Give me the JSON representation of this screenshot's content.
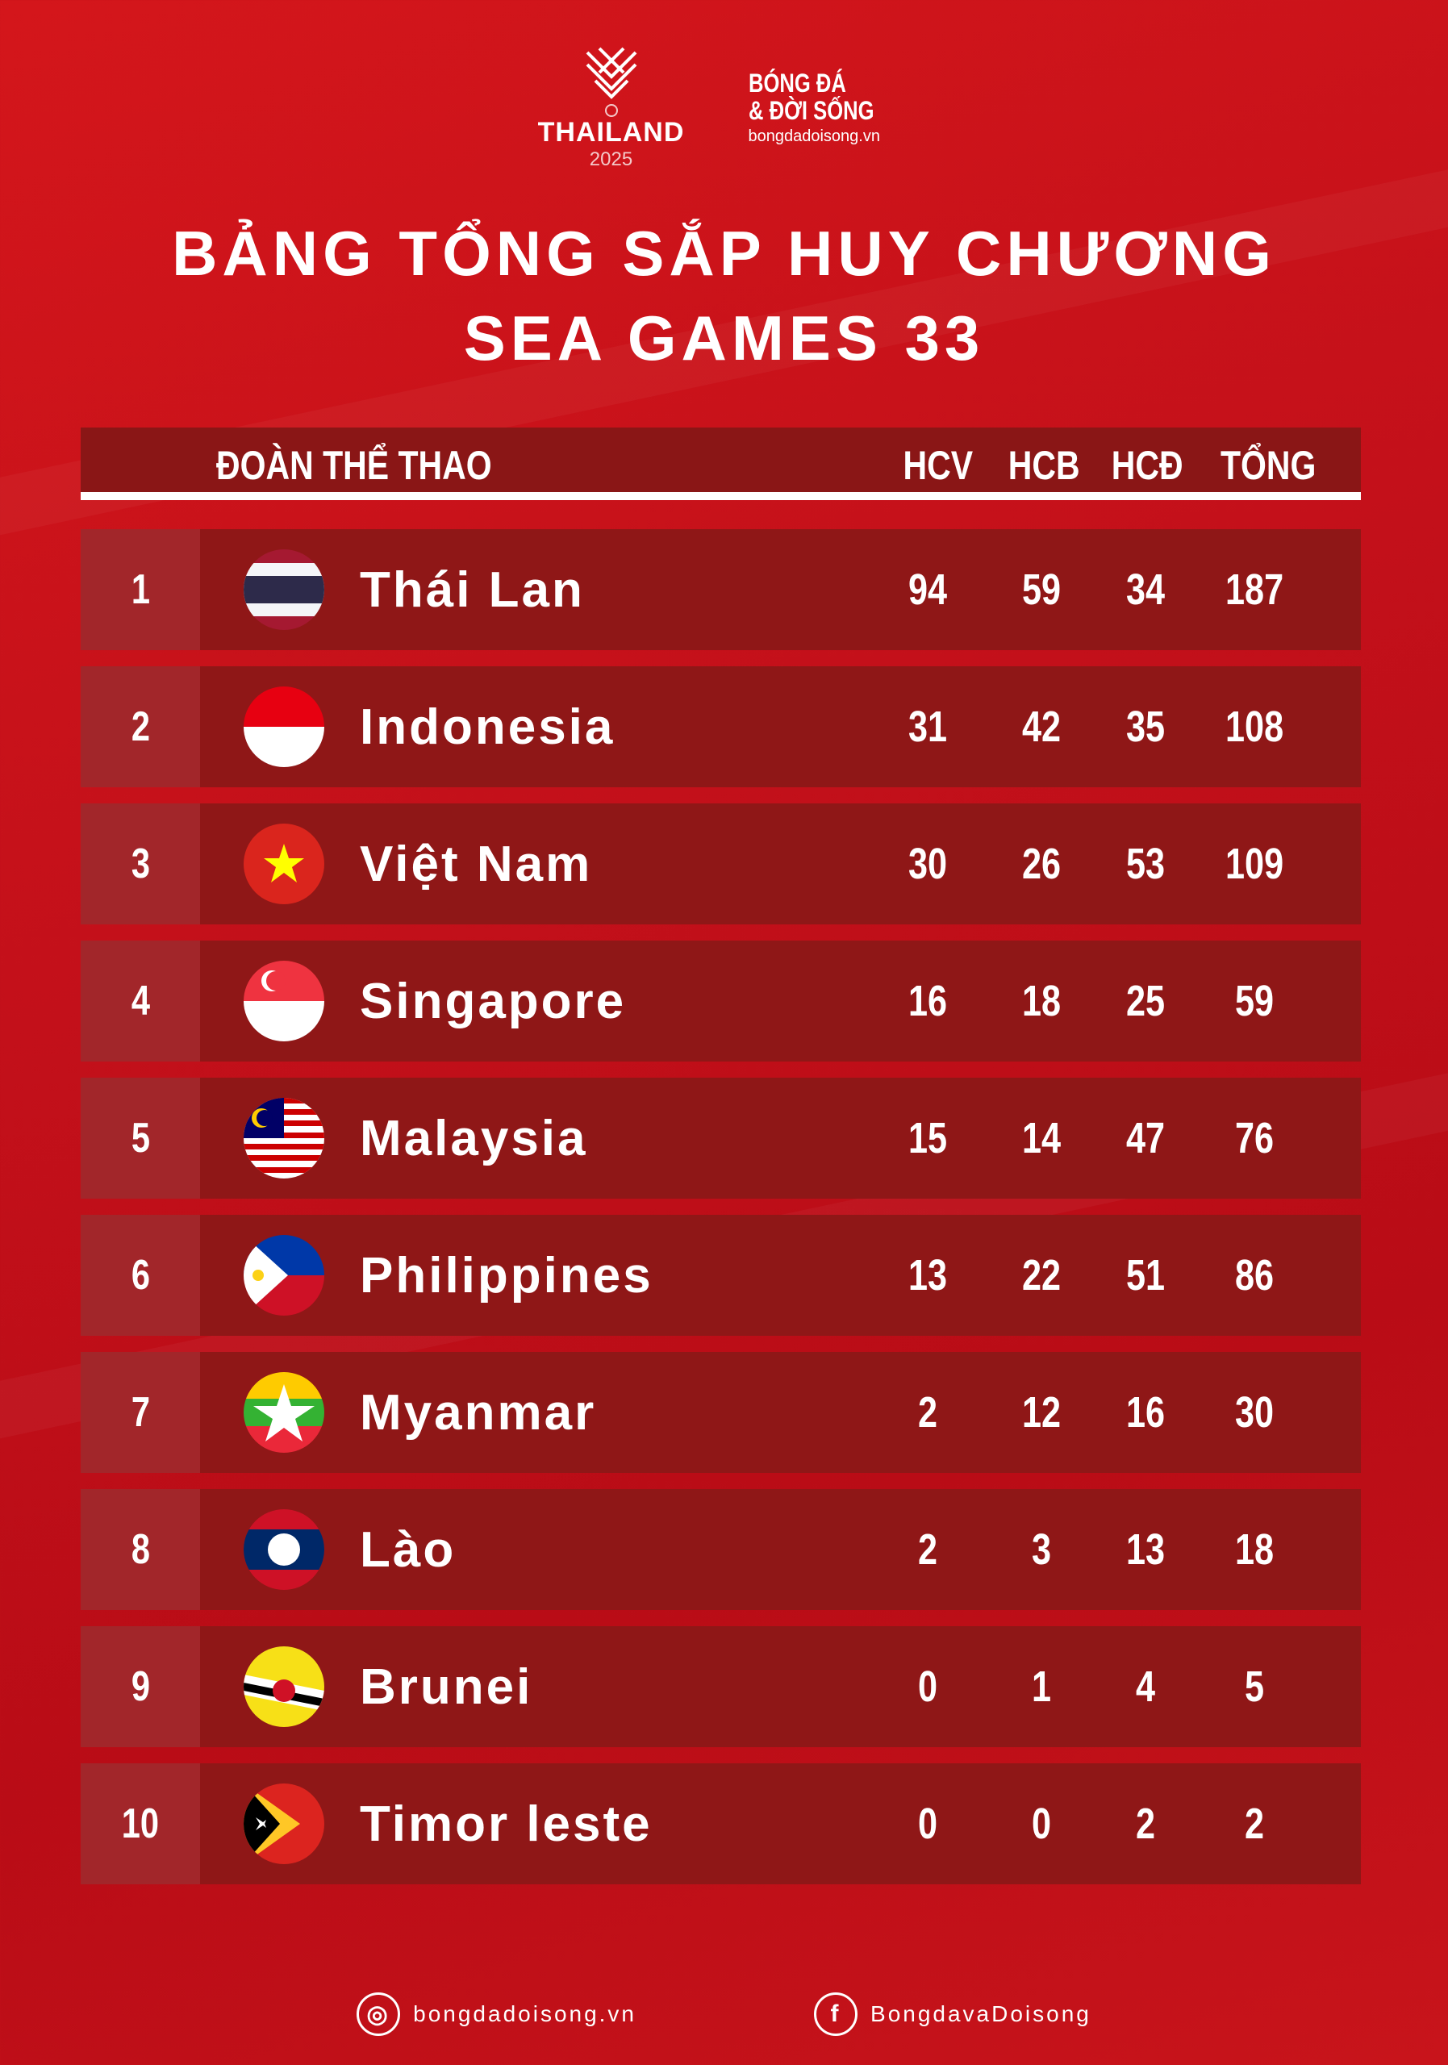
{
  "logos": {
    "thailand": {
      "name": "THAILAND",
      "year": "2025"
    },
    "bongda": {
      "line1": "BÓNG ĐÁ",
      "line2": "& ĐỜI SỐNG",
      "site": "bongdadoisong.vn"
    }
  },
  "title": {
    "line1": "BẢNG TỔNG SẮP HUY CHƯƠNG",
    "line2": "SEA GAMES 33"
  },
  "table": {
    "headers": {
      "team": "ĐOÀN THỂ THAO",
      "gold": "HCV",
      "silver": "HCB",
      "bronze": "HCĐ",
      "total": "TỔNG"
    },
    "rows": [
      {
        "rank": "1",
        "name": "Thái Lan",
        "flag": "thailand-flag",
        "gold": "94",
        "silver": "59",
        "bronze": "34",
        "total": "187"
      },
      {
        "rank": "2",
        "name": "Indonesia",
        "flag": "indonesia-flag",
        "gold": "31",
        "silver": "42",
        "bronze": "35",
        "total": "108"
      },
      {
        "rank": "3",
        "name": "Việt Nam",
        "flag": "vietnam-flag",
        "gold": "30",
        "silver": "26",
        "bronze": "53",
        "total": "109"
      },
      {
        "rank": "4",
        "name": "Singapore",
        "flag": "singapore-flag",
        "gold": "16",
        "silver": "18",
        "bronze": "25",
        "total": "59"
      },
      {
        "rank": "5",
        "name": "Malaysia",
        "flag": "malaysia-flag",
        "gold": "15",
        "silver": "14",
        "bronze": "47",
        "total": "76"
      },
      {
        "rank": "6",
        "name": "Philippines",
        "flag": "philippines-flag",
        "gold": "13",
        "silver": "22",
        "bronze": "51",
        "total": "86"
      },
      {
        "rank": "7",
        "name": "Myanmar",
        "flag": "myanmar-flag",
        "gold": "2",
        "silver": "12",
        "bronze": "16",
        "total": "30"
      },
      {
        "rank": "8",
        "name": "Lào",
        "flag": "laos-flag",
        "gold": "2",
        "silver": "3",
        "bronze": "13",
        "total": "18"
      },
      {
        "rank": "9",
        "name": "Brunei",
        "flag": "brunei-flag",
        "gold": "0",
        "silver": "1",
        "bronze": "4",
        "total": "5"
      },
      {
        "rank": "10",
        "name": "Timor leste",
        "flag": "timor-leste-flag",
        "gold": "0",
        "silver": "0",
        "bronze": "2",
        "total": "2"
      }
    ]
  },
  "footer": {
    "website": "bongdadoisong.vn",
    "facebook": "BongdavaDoisong"
  },
  "colors": {
    "background": "#c3101a",
    "row": "#8f1717",
    "rank_cell": "#a2262a"
  }
}
